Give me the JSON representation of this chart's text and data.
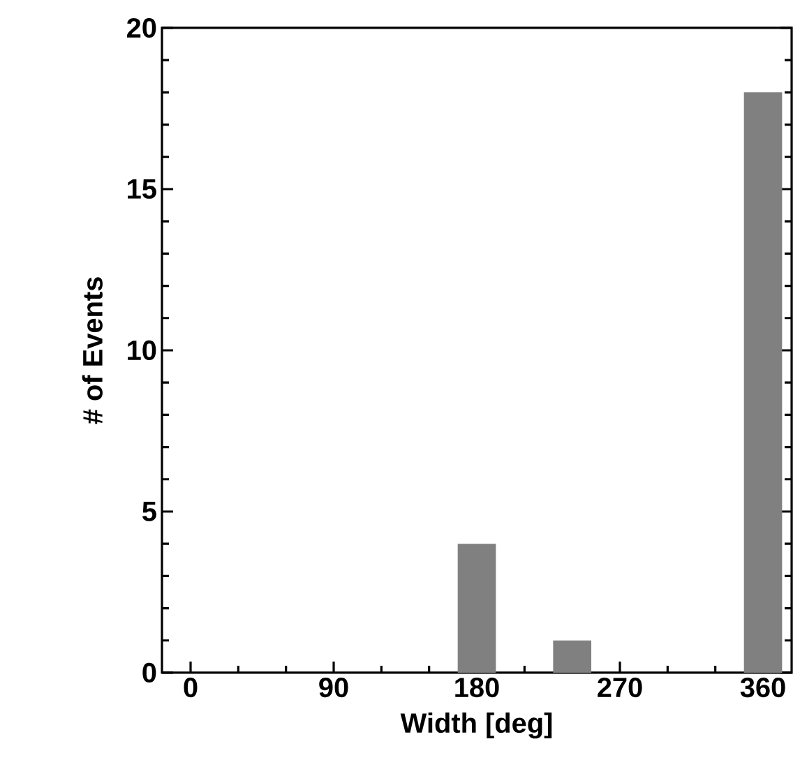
{
  "chart_data": {
    "type": "bar",
    "xlabel": "Width [deg]",
    "ylabel": "# of Events",
    "x": [
      0,
      30,
      60,
      90,
      120,
      150,
      180,
      210,
      240,
      270,
      300,
      330,
      360
    ],
    "values": [
      0,
      0,
      0,
      0,
      0,
      0,
      4,
      0,
      1,
      0,
      0,
      0,
      18
    ],
    "color": "#808080",
    "xlim": [
      -18,
      378
    ],
    "ylim": [
      0,
      20
    ],
    "xticks": [
      0,
      90,
      180,
      270,
      360
    ],
    "yticks": [
      0,
      5,
      10,
      15,
      20
    ]
  }
}
